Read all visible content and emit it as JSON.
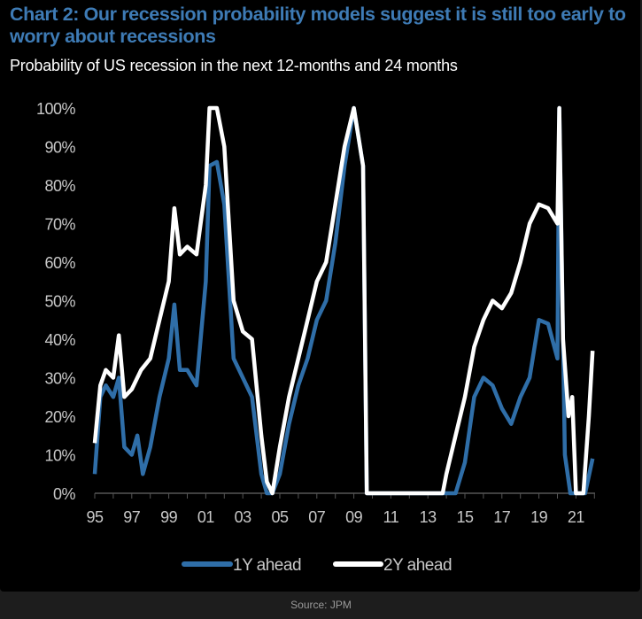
{
  "chart_data": {
    "type": "line",
    "title": "Chart 2: Our recession probability models suggest it is still too early to worry about recessions",
    "subtitle": "Probability of US recession in the next 12-months and 24 months",
    "xlabel": "",
    "ylabel": "",
    "xlim": [
      1995,
      2022
    ],
    "ylim": [
      0,
      100
    ],
    "x_ticks": [
      1995,
      1997,
      1999,
      2001,
      2003,
      2005,
      2007,
      2009,
      2011,
      2013,
      2015,
      2017,
      2019,
      2021
    ],
    "x_tick_labels": [
      "95",
      "97",
      "99",
      "01",
      "03",
      "05",
      "07",
      "09",
      "11",
      "13",
      "15",
      "17",
      "19",
      "21"
    ],
    "y_ticks": [
      0,
      10,
      20,
      30,
      40,
      50,
      60,
      70,
      80,
      90,
      100
    ],
    "y_tick_labels": [
      "0%",
      "10%",
      "20%",
      "30%",
      "40%",
      "50%",
      "60%",
      "70%",
      "80%",
      "90%",
      "100%"
    ],
    "grid": false,
    "legend_position": "bottom",
    "series": [
      {
        "name": "1Y ahead",
        "color": "#2f6ea8",
        "x": [
          1995.0,
          1995.3,
          1995.6,
          1996.0,
          1996.3,
          1996.6,
          1997.0,
          1997.3,
          1997.6,
          1998.0,
          1998.5,
          1999.0,
          1999.3,
          1999.6,
          2000.0,
          2000.5,
          2001.0,
          2001.2,
          2001.6,
          2002.0,
          2002.5,
          2003.0,
          2003.5,
          2004.0,
          2004.3,
          2004.6,
          2005.0,
          2005.5,
          2006.0,
          2006.5,
          2007.0,
          2007.5,
          2008.0,
          2008.5,
          2009.0,
          2009.5,
          2009.7,
          2012.0,
          2014.5,
          2015.0,
          2015.5,
          2016.0,
          2016.5,
          2017.0,
          2017.5,
          2018.0,
          2018.5,
          2019.0,
          2019.5,
          2020.0,
          2020.1,
          2020.4,
          2020.7,
          2021.5,
          2021.9
        ],
        "y": [
          5,
          25,
          28,
          25,
          30,
          12,
          10,
          15,
          5,
          12,
          25,
          35,
          49,
          32,
          32,
          28,
          55,
          85,
          86,
          75,
          35,
          30,
          25,
          5,
          0,
          0,
          5,
          18,
          28,
          35,
          45,
          50,
          65,
          85,
          100,
          85,
          0,
          0,
          0,
          8,
          25,
          30,
          28,
          22,
          18,
          25,
          30,
          45,
          44,
          35,
          100,
          10,
          0,
          0,
          9
        ]
      },
      {
        "name": "2Y ahead",
        "color": "#ffffff",
        "x": [
          1995.0,
          1995.3,
          1995.6,
          1996.0,
          1996.3,
          1996.6,
          1997.0,
          1997.5,
          1998.0,
          1998.5,
          1999.0,
          1999.3,
          1999.6,
          2000.0,
          2000.5,
          2001.0,
          2001.2,
          2001.6,
          2002.0,
          2002.5,
          2003.0,
          2003.5,
          2004.0,
          2004.3,
          2004.6,
          2005.0,
          2005.5,
          2006.0,
          2006.5,
          2007.0,
          2007.5,
          2008.0,
          2008.5,
          2009.0,
          2009.5,
          2009.7,
          2012.0,
          2013.8,
          2014.0,
          2014.5,
          2015.0,
          2015.5,
          2016.0,
          2016.5,
          2017.0,
          2017.5,
          2018.0,
          2018.5,
          2019.0,
          2019.5,
          2020.0,
          2020.1,
          2020.3,
          2020.6,
          2020.8,
          2021.0,
          2021.4,
          2021.7,
          2021.9
        ],
        "y": [
          13,
          28,
          32,
          30,
          41,
          25,
          27,
          32,
          35,
          45,
          55,
          74,
          62,
          64,
          62,
          80,
          100,
          100,
          90,
          50,
          42,
          40,
          15,
          3,
          0,
          12,
          25,
          35,
          45,
          55,
          60,
          75,
          90,
          100,
          85,
          0,
          0,
          0,
          5,
          15,
          25,
          38,
          45,
          50,
          48,
          52,
          60,
          70,
          75,
          74,
          70,
          100,
          40,
          20,
          25,
          0,
          0,
          20,
          37
        ]
      }
    ]
  },
  "footer": {
    "source": "Source: JPM"
  }
}
